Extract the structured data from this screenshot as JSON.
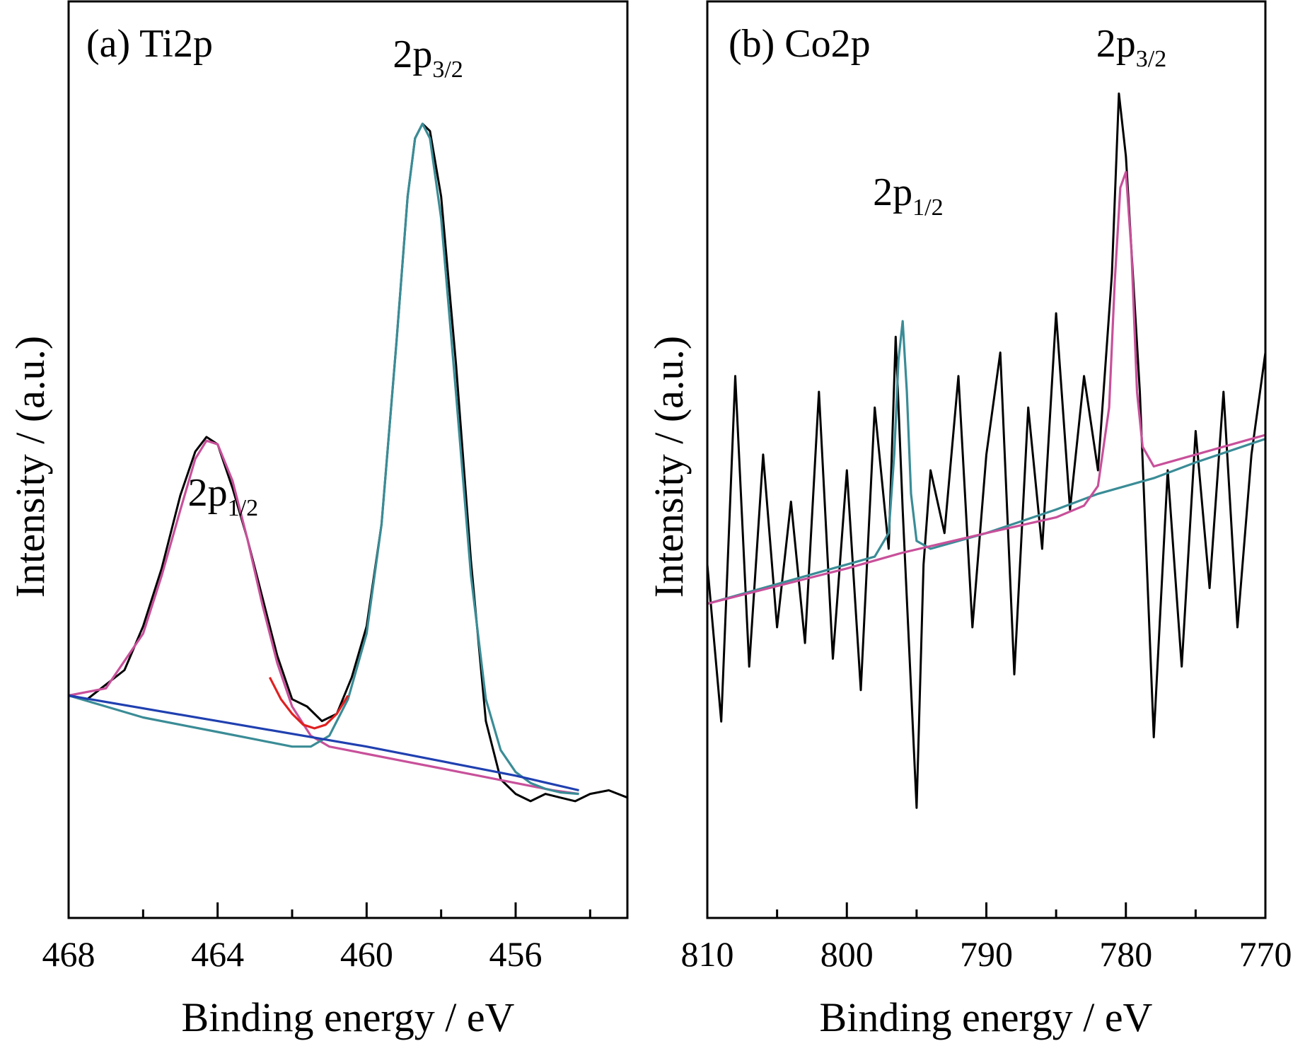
{
  "chart_data": [
    {
      "type": "line",
      "panel_label": "(a) Ti2p",
      "xlabel": "Binding energy / eV",
      "ylabel": "Intensity / (a.u.)",
      "x_reversed": true,
      "xlim": [
        468,
        453
      ],
      "ylim": [
        0,
        1.0
      ],
      "x_ticks": [
        468,
        464,
        460,
        456
      ],
      "minor_x_ticks": [
        466,
        462,
        458,
        454
      ],
      "y_ticks_shown": false,
      "annotations": [
        {
          "main": "2p",
          "sub": "1/2",
          "x": 464.0
        },
        {
          "main": "2p",
          "sub": "3/2",
          "x": 458.5
        }
      ],
      "series": [
        {
          "color": "#000000",
          "style": "measured",
          "x": [
            468.0,
            467.5,
            467.0,
            466.5,
            466.0,
            465.5,
            465.0,
            464.6,
            464.3,
            464.0,
            463.6,
            463.2,
            462.8,
            462.4,
            462.0,
            461.6,
            461.2,
            460.8,
            460.4,
            460.0,
            459.6,
            459.2,
            458.9,
            458.7,
            458.5,
            458.3,
            458.0,
            457.6,
            457.2,
            456.8,
            456.4,
            456.0,
            455.6,
            455.2,
            454.8,
            454.4,
            454.0,
            453.5,
            453.0
          ],
          "y": [
            0.215,
            0.21,
            0.23,
            0.25,
            0.31,
            0.39,
            0.49,
            0.55,
            0.57,
            0.56,
            0.5,
            0.43,
            0.35,
            0.27,
            0.21,
            0.2,
            0.18,
            0.19,
            0.24,
            0.31,
            0.45,
            0.7,
            0.9,
            0.98,
            1.0,
            0.99,
            0.9,
            0.67,
            0.4,
            0.18,
            0.1,
            0.08,
            0.07,
            0.08,
            0.075,
            0.07,
            0.08,
            0.085,
            0.075
          ]
        },
        {
          "color": "#c8509a",
          "style": "fit",
          "x": [
            468.0,
            467.0,
            466.0,
            465.5,
            465.0,
            464.6,
            464.3,
            464.0,
            463.6,
            463.2,
            462.8,
            462.4,
            462.0,
            461.5,
            461.0,
            460.0,
            459.0,
            458.0,
            457.0,
            456.0,
            455.0,
            454.3
          ],
          "y": [
            0.215,
            0.225,
            0.3,
            0.38,
            0.47,
            0.54,
            0.565,
            0.56,
            0.51,
            0.43,
            0.34,
            0.26,
            0.2,
            0.16,
            0.145,
            0.135,
            0.125,
            0.115,
            0.105,
            0.095,
            0.085,
            0.08
          ]
        },
        {
          "color": "#3a8c96",
          "style": "fit",
          "x": [
            468.0,
            467.0,
            466.0,
            465.0,
            464.0,
            463.0,
            462.0,
            461.5,
            461.0,
            460.5,
            460.0,
            459.6,
            459.2,
            458.9,
            458.7,
            458.5,
            458.3,
            458.0,
            457.6,
            457.2,
            456.8,
            456.4,
            456.0,
            455.6,
            455.2,
            454.8,
            454.3
          ],
          "y": [
            0.215,
            0.2,
            0.185,
            0.175,
            0.165,
            0.155,
            0.145,
            0.145,
            0.16,
            0.21,
            0.3,
            0.45,
            0.7,
            0.9,
            0.98,
            1.0,
            0.98,
            0.87,
            0.63,
            0.38,
            0.21,
            0.14,
            0.11,
            0.095,
            0.087,
            0.082,
            0.08
          ]
        },
        {
          "color": "#e02020",
          "style": "envelope",
          "x": [
            462.6,
            462.3,
            462.0,
            461.7,
            461.4,
            461.1,
            460.8,
            460.5
          ],
          "y": [
            0.24,
            0.21,
            0.19,
            0.175,
            0.17,
            0.175,
            0.19,
            0.215
          ]
        },
        {
          "color": "#2040b0",
          "style": "background",
          "x": [
            468.0,
            464.0,
            460.0,
            456.0,
            454.3
          ],
          "y": [
            0.215,
            0.18,
            0.145,
            0.105,
            0.085
          ]
        }
      ]
    },
    {
      "type": "line",
      "panel_label": "(b) Co2p",
      "xlabel": "Binding energy / eV",
      "ylabel": "Intensity / (a.u.)",
      "x_reversed": true,
      "xlim": [
        810,
        770
      ],
      "ylim": [
        0,
        1.0
      ],
      "x_ticks": [
        810,
        800,
        790,
        780,
        770
      ],
      "minor_x_ticks": [
        805,
        795,
        785,
        775
      ],
      "y_ticks_shown": false,
      "annotations": [
        {
          "main": "2p",
          "sub": "1/2",
          "x": 796.0
        },
        {
          "main": "2p",
          "sub": "3/2",
          "x": 780.0
        }
      ],
      "series": [
        {
          "color": "#000000",
          "style": "measured",
          "x": [
            810.0,
            809.0,
            808.0,
            807.0,
            806.0,
            805.0,
            804.0,
            803.0,
            802.0,
            801.0,
            800.0,
            799.0,
            798.0,
            797.0,
            796.5,
            796.0,
            795.0,
            794.5,
            794.0,
            793.0,
            792.0,
            791.0,
            790.0,
            789.0,
            788.0,
            787.0,
            786.0,
            785.0,
            784.0,
            783.0,
            782.0,
            781.0,
            780.5,
            780.0,
            779.0,
            778.0,
            777.0,
            776.0,
            775.0,
            774.0,
            773.0,
            772.0,
            771.0,
            770.0
          ],
          "y": [
            0.38,
            0.18,
            0.62,
            0.25,
            0.52,
            0.3,
            0.46,
            0.28,
            0.6,
            0.26,
            0.5,
            0.22,
            0.58,
            0.4,
            0.67,
            0.45,
            0.07,
            0.38,
            0.5,
            0.42,
            0.62,
            0.3,
            0.52,
            0.65,
            0.24,
            0.58,
            0.4,
            0.7,
            0.45,
            0.62,
            0.5,
            0.75,
            0.98,
            0.9,
            0.6,
            0.16,
            0.5,
            0.25,
            0.55,
            0.35,
            0.6,
            0.3,
            0.52,
            0.65
          ]
        },
        {
          "color": "#3a8c96",
          "style": "fit",
          "x": [
            810.0,
            800.0,
            798.0,
            797.0,
            796.6,
            796.3,
            796.0,
            795.7,
            795.4,
            795.0,
            794.0,
            790.0,
            785.0,
            782.0,
            780.0,
            778.0,
            775.0,
            770.0
          ],
          "y": [
            0.33,
            0.38,
            0.39,
            0.42,
            0.52,
            0.64,
            0.69,
            0.6,
            0.47,
            0.41,
            0.4,
            0.42,
            0.45,
            0.47,
            0.48,
            0.49,
            0.51,
            0.54
          ]
        },
        {
          "color": "#c8509a",
          "style": "fit",
          "x": [
            810.0,
            800.0,
            796.0,
            790.0,
            785.0,
            783.0,
            782.0,
            781.2,
            780.8,
            780.4,
            780.0,
            779.6,
            779.2,
            778.8,
            778.0,
            777.0,
            775.0,
            770.0
          ],
          "y": [
            0.33,
            0.375,
            0.395,
            0.42,
            0.44,
            0.455,
            0.48,
            0.58,
            0.74,
            0.86,
            0.88,
            0.78,
            0.6,
            0.53,
            0.505,
            0.51,
            0.52,
            0.545
          ]
        }
      ]
    }
  ]
}
